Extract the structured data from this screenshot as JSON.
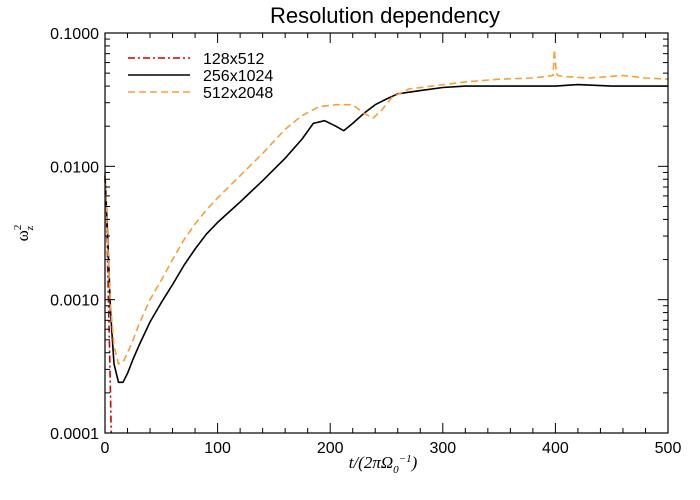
{
  "chart_data": {
    "type": "line",
    "title": "Resolution dependency",
    "xlabel": "t/(2πΩ₀⁻¹)",
    "ylabel": "ω_z²",
    "xlim": [
      0,
      500
    ],
    "ylim": [
      0.0001,
      0.1
    ],
    "yscale": "log",
    "x_ticks": [
      0,
      100,
      200,
      300,
      400,
      500
    ],
    "x_tick_labels": [
      "0",
      "100",
      "200",
      "300",
      "400",
      "500"
    ],
    "y_ticks": [
      0.0001,
      0.001,
      0.01,
      0.1
    ],
    "y_tick_labels": [
      "0.0001",
      "0.0010",
      "0.0100",
      "0.1000"
    ],
    "legend_position": "top-left",
    "series": [
      {
        "name": "128x512",
        "color": "#cc0000",
        "dash": "dashdot",
        "x": [
          0,
          1,
          2,
          3,
          4,
          5,
          5.5
        ],
        "y": [
          0.0085,
          0.005,
          0.0025,
          0.001,
          0.00045,
          0.00018,
          0.0001
        ]
      },
      {
        "name": "256x1024",
        "color": "#000000",
        "dash": "solid",
        "x": [
          0,
          2,
          5,
          8,
          12,
          16,
          20,
          25,
          30,
          40,
          50,
          60,
          70,
          80,
          90,
          100,
          120,
          140,
          160,
          175,
          185,
          195,
          205,
          212,
          220,
          230,
          240,
          250,
          260,
          280,
          300,
          320,
          350,
          380,
          400,
          420,
          450,
          480,
          500
        ],
        "y": [
          0.0085,
          0.0035,
          0.0008,
          0.00033,
          0.00024,
          0.00024,
          0.00028,
          0.00036,
          0.00045,
          0.00068,
          0.00095,
          0.0013,
          0.0018,
          0.0024,
          0.0031,
          0.0038,
          0.0054,
          0.0078,
          0.0115,
          0.016,
          0.021,
          0.022,
          0.02,
          0.0185,
          0.021,
          0.025,
          0.029,
          0.032,
          0.035,
          0.037,
          0.039,
          0.04,
          0.04,
          0.04,
          0.04,
          0.041,
          0.04,
          0.04,
          0.04
        ]
      },
      {
        "name": "512x2048",
        "color": "#f5a03c",
        "dash": "dashed",
        "x": [
          0,
          2,
          5,
          8,
          12,
          16,
          20,
          25,
          30,
          40,
          50,
          60,
          70,
          80,
          90,
          100,
          120,
          140,
          160,
          175,
          190,
          205,
          220,
          230,
          238,
          245,
          255,
          270,
          290,
          320,
          350,
          380,
          398,
          399,
          400,
          401,
          402,
          410,
          430,
          460,
          480,
          500
        ],
        "y": [
          0.009,
          0.003,
          0.0009,
          0.00045,
          0.00033,
          0.00034,
          0.0004,
          0.0005,
          0.00065,
          0.001,
          0.0014,
          0.002,
          0.0028,
          0.0037,
          0.0047,
          0.0058,
          0.0085,
          0.0125,
          0.019,
          0.024,
          0.028,
          0.029,
          0.029,
          0.025,
          0.023,
          0.026,
          0.033,
          0.038,
          0.04,
          0.043,
          0.045,
          0.046,
          0.048,
          0.075,
          0.06,
          0.05,
          0.048,
          0.047,
          0.046,
          0.048,
          0.046,
          0.045
        ]
      }
    ]
  }
}
